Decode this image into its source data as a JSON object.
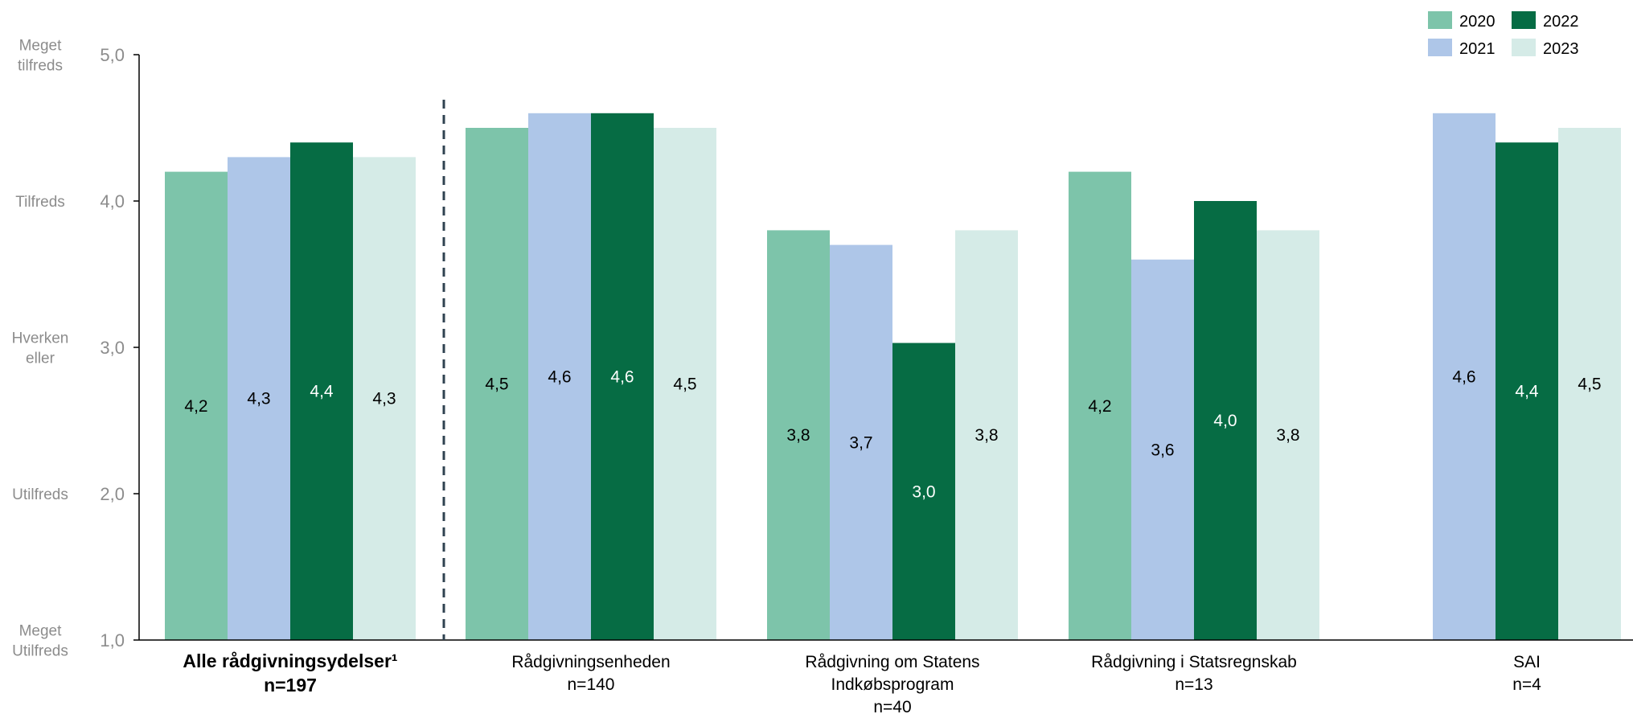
{
  "chart_data": {
    "type": "bar",
    "ylim": [
      1.0,
      5.0
    ],
    "y_ticks": [
      "1,0",
      "2,0",
      "3,0",
      "4,0",
      "5,0"
    ],
    "satisfaction_labels": [
      {
        "value": 5,
        "lines": [
          "Meget",
          "tilfreds"
        ]
      },
      {
        "value": 4,
        "lines": [
          "Tilfreds"
        ]
      },
      {
        "value": 3,
        "lines": [
          "Hverken",
          "eller"
        ]
      },
      {
        "value": 2,
        "lines": [
          "Utilfreds"
        ]
      },
      {
        "value": 1,
        "lines": [
          "Meget",
          "Utilfreds"
        ]
      }
    ],
    "categories": [
      {
        "lines": [
          "Alle rådgivningsydelser¹",
          "n=197"
        ],
        "bold": true
      },
      {
        "lines": [
          "Rådgivningsenheden",
          "n=140"
        ],
        "bold": false
      },
      {
        "lines": [
          "Rådgivning om Statens",
          "Indkøbsprogram",
          "n=40"
        ],
        "bold": false
      },
      {
        "lines": [
          "Rådgivning i Statsregnskab",
          "n=13"
        ],
        "bold": false
      },
      {
        "lines": [
          "SAI",
          "n=4"
        ],
        "bold": false
      }
    ],
    "series": [
      {
        "name": "2020",
        "color": "#7dc4aa",
        "label_color": "#000000",
        "values": [
          4.2,
          4.5,
          3.8,
          4.2,
          null
        ],
        "labels": [
          "4,2",
          "4,5",
          "3,8",
          "4,2",
          ""
        ]
      },
      {
        "name": "2021",
        "color": "#aec6e8",
        "label_color": "#000000",
        "values": [
          4.3,
          4.6,
          3.7,
          3.6,
          4.6
        ],
        "labels": [
          "4,3",
          "4,6",
          "3,7",
          "3,6",
          "4,6"
        ]
      },
      {
        "name": "2022",
        "color": "#066c44",
        "label_color": "#ffffff",
        "values": [
          4.4,
          4.6,
          3.03,
          4.0,
          4.4
        ],
        "labels": [
          "4,4",
          "4,6",
          "3,0",
          "4,0",
          "4,4"
        ]
      },
      {
        "name": "2023",
        "color": "#d5ebe7",
        "label_color": "#000000",
        "values": [
          4.3,
          4.5,
          3.8,
          3.8,
          4.5
        ],
        "labels": [
          "4,3",
          "4,5",
          "3,8",
          "3,8",
          "4,5"
        ]
      }
    ],
    "grid": false,
    "legend_position": "top-right",
    "separator_after_category": 0
  }
}
